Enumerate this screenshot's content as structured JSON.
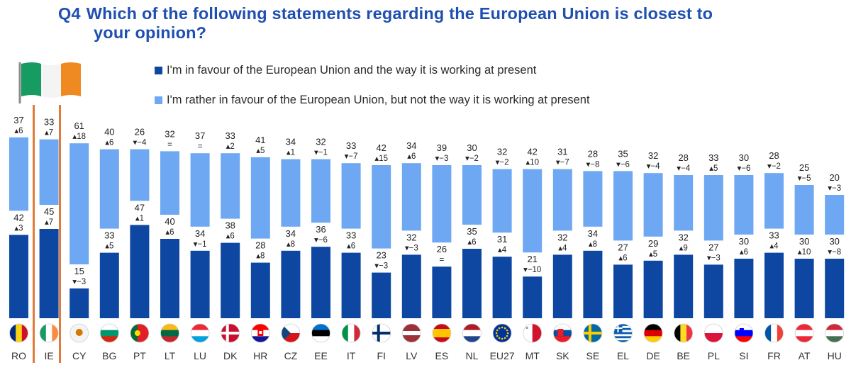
{
  "title": {
    "prefix": "Q4",
    "line1": "Which of the following statements regarding the European Union is closest to",
    "line2": "your opinion?"
  },
  "legend": [
    {
      "label": "I'm in favour of the European Union and the way it is working at present",
      "color": "#0d47a1"
    },
    {
      "label": "I'm rather in favour of the European Union, but not the way it is working at present",
      "color": "#6ea8f2"
    }
  ],
  "highlight_color": "#e07b39",
  "chart_data": {
    "type": "bar",
    "stacked": true,
    "categories": [
      "RO",
      "IE",
      "CY",
      "BG",
      "PT",
      "LT",
      "LU",
      "DK",
      "HR",
      "CZ",
      "EE",
      "IT",
      "FI",
      "LV",
      "ES",
      "NL",
      "EU27",
      "MT",
      "SK",
      "SE",
      "EL",
      "DE",
      "BE",
      "PL",
      "SI",
      "FR",
      "AT",
      "HU"
    ],
    "highlighted_category": "IE",
    "series": [
      {
        "name": "I'm in favour of the European Union and the way it is working at present",
        "color": "#0d47a1",
        "values": [
          42,
          45,
          15,
          33,
          47,
          40,
          34,
          38,
          28,
          34,
          36,
          33,
          23,
          32,
          26,
          35,
          31,
          21,
          32,
          34,
          27,
          29,
          32,
          27,
          30,
          33,
          30,
          30
        ],
        "changes": [
          "▴3",
          "▴7",
          "▾−3",
          "▴5",
          "▴1",
          "▴6",
          "▾−1",
          "▴6",
          "▴8",
          "▴8",
          "▾−6",
          "▴6",
          "▾−3",
          "▾−3",
          "=",
          "▴6",
          "▴4",
          "▾−10",
          "▴4",
          "▴8",
          "▴6",
          "▴5",
          "▴9",
          "▾−3",
          "▴6",
          "▴4",
          "▴10",
          "▾−8"
        ]
      },
      {
        "name": "I'm rather in favour of the European Union, but not the way it is working at present",
        "color": "#6ea8f2",
        "values": [
          37,
          33,
          61,
          40,
          26,
          32,
          37,
          33,
          41,
          34,
          32,
          33,
          42,
          34,
          39,
          30,
          32,
          42,
          31,
          28,
          35,
          32,
          28,
          33,
          30,
          28,
          25,
          20
        ],
        "changes": [
          "▴6",
          "▴7",
          "▴18",
          "▴6",
          "▾−4",
          "=",
          "=",
          "▴2",
          "▴5",
          "▴1",
          "▾−1",
          "▾−7",
          "▴15",
          "▴6",
          "▾−3",
          "▾−2",
          "▾−2",
          "▴10",
          "▾−7",
          "▾−8",
          "▾−6",
          "▾−4",
          "▾−4",
          "▴5",
          "▾−6",
          "▾−2",
          "▾−5",
          "▾−3"
        ]
      }
    ],
    "flags": [
      "flag-ro",
      "flag-ie",
      "flag-cy",
      "flag-bg",
      "flag-pt",
      "flag-lt",
      "flag-lu",
      "flag-dk",
      "flag-hr",
      "flag-cz",
      "flag-ee",
      "flag-it",
      "flag-fi",
      "flag-lv",
      "flag-es",
      "flag-nl",
      "flag-eu",
      "flag-mt",
      "flag-sk",
      "flag-se",
      "flag-el",
      "flag-de",
      "flag-be",
      "flag-pl",
      "flag-si",
      "flag-fr",
      "flag-at",
      "flag-hu"
    ]
  }
}
